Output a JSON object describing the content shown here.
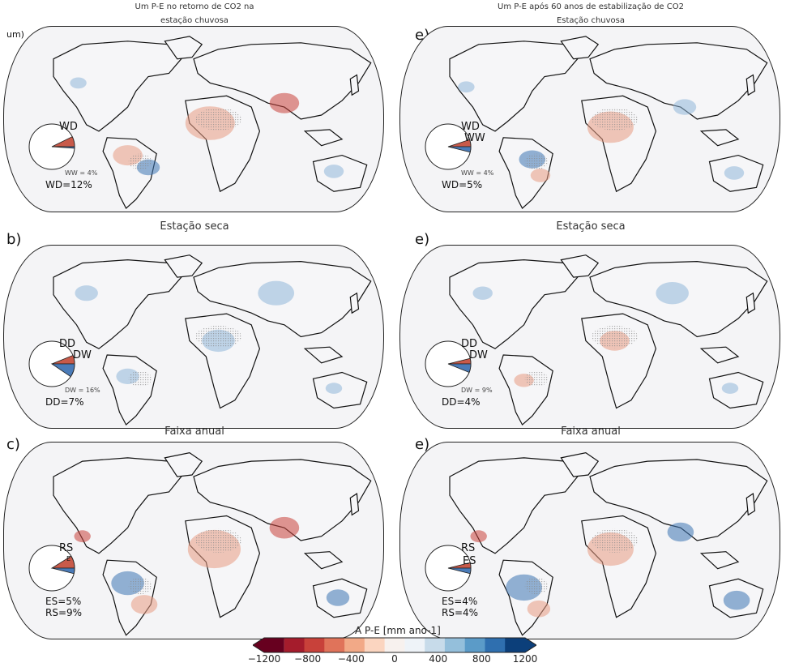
{
  "colors": {
    "land": "#f6f6f8",
    "coast": "#111111",
    "wet": "#4a7bb8",
    "dry": "#c85a4a",
    "stipple": "#8a8a8a"
  },
  "panels": [
    {
      "id": "a",
      "title_line1": "Um P-E no retorno de CO2 na",
      "title_line2": "estação chuvosa",
      "label": "um)",
      "pie": {
        "dry_label": "WD",
        "wet_label": "",
        "extra_label": "",
        "stat_small": "WW = 4%",
        "stat_lines": [
          "WD=12%"
        ]
      }
    },
    {
      "id": "d",
      "title_line1": "Um P-E após 60 anos de estabilização de CO2",
      "title_line2": "Estação chuvosa",
      "label": "e)",
      "pie": {
        "dry_label": "WD",
        "wet_label": "WW",
        "extra_label": "",
        "stat_small": "WW = 4%",
        "stat_lines": [
          "WD=5%"
        ]
      }
    },
    {
      "id": "b",
      "title_line1": "Estação seca",
      "title_line2": "",
      "label": "b)",
      "pie": {
        "dry_label": "DD",
        "wet_label": "DW",
        "extra_label": "",
        "stat_small": "DW = 16%",
        "stat_lines": [
          "DD=7%"
        ]
      }
    },
    {
      "id": "e",
      "title_line1": "Estação seca",
      "title_line2": "",
      "label": "e)",
      "pie": {
        "dry_label": "DD",
        "wet_label": "DW",
        "extra_label": "",
        "stat_small": "DW = 9%",
        "stat_lines": [
          "DD=4%"
        ]
      }
    },
    {
      "id": "c",
      "title_line1": "Faixa anual",
      "title_line2": "",
      "label": "c)",
      "pie": {
        "dry_label": "RS",
        "wet_label": "E",
        "extra_label": "",
        "stat_small": "",
        "stat_lines": [
          "ES=5%",
          "RS=9%"
        ]
      }
    },
    {
      "id": "f",
      "title_line1": "Faixa anual",
      "title_line2": "",
      "label": "e)",
      "pie": {
        "dry_label": "RS",
        "wet_label": "ES",
        "extra_label": "",
        "stat_small": "",
        "stat_lines": [
          "ES=4%",
          "RS=4%"
        ]
      }
    }
  ],
  "colorbar": {
    "title": "A P-E [mm ano-1]",
    "ticks": [
      "−1200",
      "−800",
      "−400",
      "0",
      "400",
      "800",
      "1200"
    ],
    "colors": [
      "#67001f",
      "#a51c2c",
      "#c8413a",
      "#e0735a",
      "#f2a987",
      "#fbd5c0",
      "#f7f1ee",
      "#eef3f8",
      "#c7dbea",
      "#94bfdb",
      "#5b9bc8",
      "#2f6faf",
      "#0c3f7a"
    ]
  }
}
